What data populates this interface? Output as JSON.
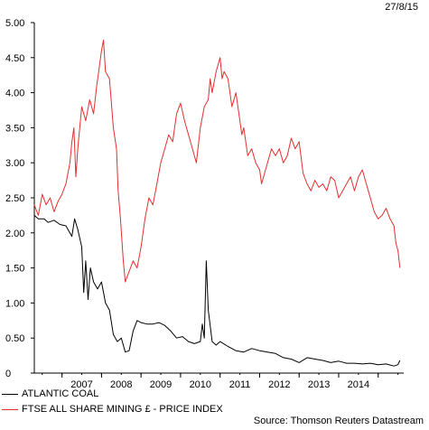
{
  "header": {
    "date": "27/8/15"
  },
  "chart_data": {
    "type": "line",
    "title": "",
    "xlabel": "",
    "ylabel": "",
    "ylim": [
      0,
      5.0
    ],
    "xlim": [
      2006.3,
      2015.6
    ],
    "yticks": [
      "5.00",
      "4.50",
      "4.00",
      "3.50",
      "3.00",
      "2.50",
      "2.00",
      "1.50",
      "1.00",
      "0.50",
      "0"
    ],
    "ytick_values": [
      5.0,
      4.5,
      4.0,
      3.5,
      3.0,
      2.5,
      2.0,
      1.5,
      1.0,
      0.5,
      0
    ],
    "xticks": [
      "2007",
      "2008",
      "2009",
      "2010",
      "2011",
      "2012",
      "2013",
      "2014"
    ],
    "xtick_values": [
      2007.0,
      2008.0,
      2009.0,
      2010.0,
      2011.0,
      2012.0,
      2013.0,
      2014.0
    ],
    "grid": false,
    "legend_position": "bottom-left",
    "series": [
      {
        "name": "ATLANTIC COAL",
        "color": "#000000",
        "x": [
          2006.3,
          2006.4,
          2006.55,
          2006.65,
          2006.8,
          2006.95,
          2007.1,
          2007.25,
          2007.32,
          2007.4,
          2007.5,
          2007.55,
          2007.6,
          2007.66,
          2007.72,
          2007.8,
          2007.9,
          2008.0,
          2008.1,
          2008.2,
          2008.3,
          2008.4,
          2008.5,
          2008.6,
          2008.7,
          2008.8,
          2008.9,
          2009.0,
          2009.15,
          2009.3,
          2009.45,
          2009.6,
          2009.75,
          2009.9,
          2010.05,
          2010.2,
          2010.35,
          2010.5,
          2010.55,
          2010.6,
          2010.65,
          2010.7,
          2010.8,
          2010.9,
          2011.0,
          2011.2,
          2011.4,
          2011.6,
          2011.8,
          2012.0,
          2012.2,
          2012.4,
          2012.6,
          2012.8,
          2013.0,
          2013.2,
          2013.4,
          2013.6,
          2013.8,
          2014.0,
          2014.2,
          2014.4,
          2014.6,
          2014.8,
          2015.0,
          2015.2,
          2015.4,
          2015.5,
          2015.55
        ],
        "y": [
          2.25,
          2.2,
          2.2,
          2.15,
          2.18,
          2.12,
          2.1,
          1.95,
          2.2,
          2.05,
          1.8,
          1.15,
          1.6,
          1.05,
          1.5,
          1.3,
          1.2,
          1.3,
          1.0,
          0.9,
          0.55,
          0.45,
          0.5,
          0.3,
          0.32,
          0.6,
          0.75,
          0.72,
          0.7,
          0.7,
          0.72,
          0.68,
          0.6,
          0.5,
          0.52,
          0.45,
          0.42,
          0.45,
          0.7,
          0.5,
          1.6,
          0.9,
          0.45,
          0.4,
          0.45,
          0.38,
          0.32,
          0.3,
          0.35,
          0.32,
          0.3,
          0.28,
          0.22,
          0.2,
          0.15,
          0.22,
          0.2,
          0.18,
          0.15,
          0.17,
          0.14,
          0.14,
          0.13,
          0.14,
          0.12,
          0.13,
          0.1,
          0.12,
          0.18
        ]
      },
      {
        "name": "FTSE ALL SHARE MINING £ - PRICE INDEX",
        "color": "#e03030",
        "x": [
          2006.3,
          2006.4,
          2006.5,
          2006.6,
          2006.7,
          2006.8,
          2006.9,
          2007.0,
          2007.1,
          2007.2,
          2007.25,
          2007.3,
          2007.35,
          2007.4,
          2007.5,
          2007.6,
          2007.7,
          2007.8,
          2007.88,
          2007.93,
          2008.0,
          2008.05,
          2008.1,
          2008.2,
          2008.3,
          2008.38,
          2008.42,
          2008.48,
          2008.55,
          2008.6,
          2008.7,
          2008.8,
          2008.9,
          2009.0,
          2009.1,
          2009.2,
          2009.3,
          2009.4,
          2009.5,
          2009.6,
          2009.7,
          2009.8,
          2009.9,
          2010.0,
          2010.1,
          2010.2,
          2010.3,
          2010.4,
          2010.5,
          2010.6,
          2010.7,
          2010.75,
          2010.8,
          2010.9,
          2011.0,
          2011.05,
          2011.1,
          2011.2,
          2011.3,
          2011.4,
          2011.5,
          2011.55,
          2011.6,
          2011.7,
          2011.8,
          2011.9,
          2012.0,
          2012.05,
          2012.1,
          2012.2,
          2012.3,
          2012.4,
          2012.5,
          2012.6,
          2012.7,
          2012.8,
          2012.9,
          2013.0,
          2013.1,
          2013.2,
          2013.3,
          2013.4,
          2013.5,
          2013.6,
          2013.7,
          2013.8,
          2013.9,
          2014.0,
          2014.1,
          2014.2,
          2014.3,
          2014.4,
          2014.5,
          2014.6,
          2014.7,
          2014.8,
          2014.9,
          2015.0,
          2015.1,
          2015.2,
          2015.3,
          2015.4,
          2015.45,
          2015.5,
          2015.55
        ],
        "y": [
          2.4,
          2.25,
          2.55,
          2.4,
          2.5,
          2.3,
          2.45,
          2.55,
          2.7,
          3.0,
          3.3,
          3.5,
          2.8,
          3.2,
          3.8,
          3.6,
          3.9,
          3.7,
          4.1,
          4.3,
          4.6,
          4.75,
          4.3,
          4.2,
          3.5,
          3.2,
          2.6,
          2.2,
          1.6,
          1.3,
          1.45,
          1.6,
          1.5,
          1.8,
          2.2,
          2.5,
          2.4,
          2.7,
          3.0,
          3.2,
          3.4,
          3.3,
          3.7,
          3.85,
          3.6,
          3.4,
          3.2,
          3.0,
          3.5,
          3.8,
          3.9,
          4.2,
          4.0,
          4.3,
          4.5,
          4.2,
          4.3,
          4.2,
          3.8,
          4.0,
          3.6,
          3.4,
          3.5,
          3.1,
          3.2,
          3.0,
          2.9,
          2.7,
          2.8,
          3.0,
          3.2,
          3.1,
          3.2,
          3.0,
          3.1,
          3.35,
          3.2,
          3.3,
          2.85,
          2.7,
          2.6,
          2.75,
          2.65,
          2.7,
          2.6,
          2.8,
          2.75,
          2.5,
          2.6,
          2.7,
          2.8,
          2.6,
          2.8,
          2.9,
          2.7,
          2.5,
          2.3,
          2.2,
          2.25,
          2.35,
          2.2,
          2.1,
          1.85,
          1.75,
          1.5
        ]
      }
    ]
  },
  "legend": {
    "items": [
      {
        "label": "ATLANTIC COAL",
        "color": "#000000"
      },
      {
        "label": "FTSE ALL SHARE MINING £ - PRICE INDEX",
        "color": "#e03030"
      }
    ]
  },
  "footer": {
    "source": "Source: Thomson Reuters Datastream"
  }
}
